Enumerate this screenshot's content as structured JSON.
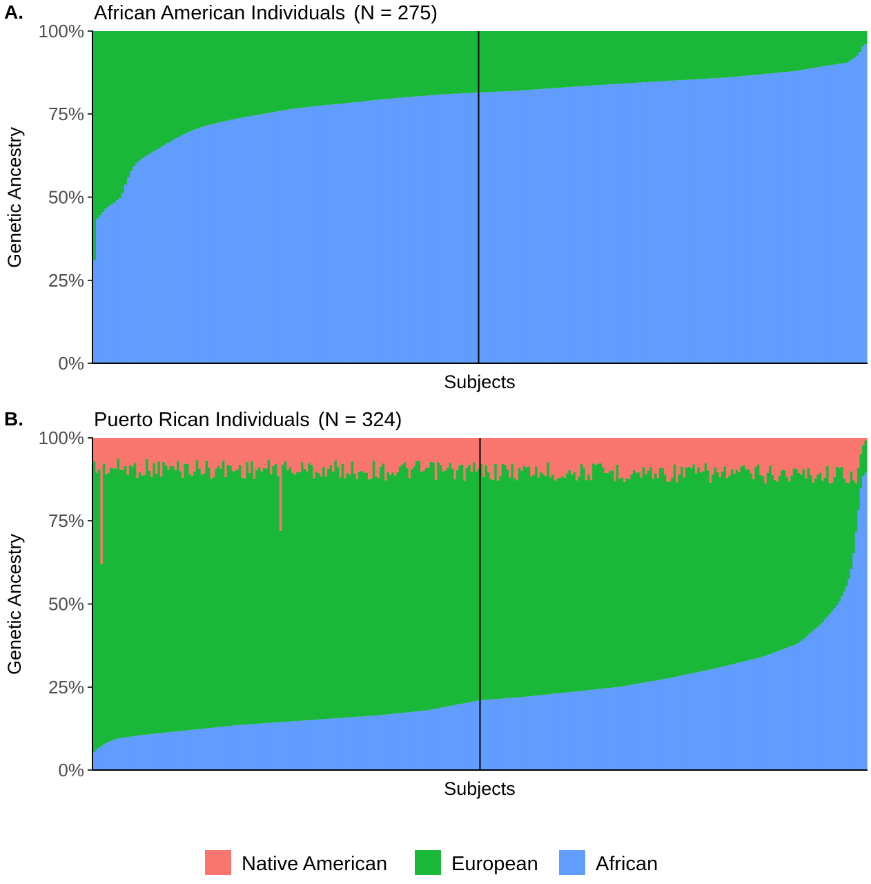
{
  "chart_data": [
    {
      "type": "bar",
      "stacked": true,
      "panel_label": "A.",
      "title": "African American Individuals",
      "n_label": "(N = 275)",
      "xlabel": "Subjects",
      "ylabel": "Genetic Ancestry",
      "ylim": [
        0,
        100
      ],
      "yticks": [
        "0%",
        "25%",
        "50%",
        "75%",
        "100%"
      ],
      "n_subjects": 275,
      "sort_by": "African",
      "median_line": true,
      "series_order": [
        "African",
        "European",
        "Native American"
      ],
      "african_profile": [
        [
          0,
          30
        ],
        [
          0.5,
          31
        ],
        [
          1,
          43
        ],
        [
          2,
          44
        ],
        [
          3,
          45
        ],
        [
          4,
          46
        ],
        [
          5,
          47
        ],
        [
          7,
          48
        ],
        [
          10,
          50
        ],
        [
          12,
          55
        ],
        [
          13,
          57
        ],
        [
          15,
          60
        ],
        [
          18,
          62
        ],
        [
          22,
          64
        ],
        [
          26,
          66
        ],
        [
          30,
          68
        ],
        [
          35,
          70
        ],
        [
          40,
          71.5
        ],
        [
          50,
          73.5
        ],
        [
          60,
          75
        ],
        [
          70,
          76.5
        ],
        [
          80,
          77.5
        ],
        [
          90,
          78.3
        ],
        [
          100,
          79.2
        ],
        [
          110,
          80
        ],
        [
          125,
          81
        ],
        [
          137,
          81.5
        ],
        [
          150,
          82
        ],
        [
          175,
          83.5
        ],
        [
          200,
          84.8
        ],
        [
          225,
          86
        ],
        [
          250,
          88
        ],
        [
          260,
          89.5
        ],
        [
          268,
          90.5
        ],
        [
          270,
          91.5
        ],
        [
          272,
          93
        ],
        [
          274,
          96
        ],
        [
          275,
          96
        ]
      ],
      "native_american_profile": [
        [
          0,
          0
        ],
        [
          275,
          0
        ]
      ],
      "european_profile": "remainder to 100%"
    },
    {
      "type": "bar",
      "stacked": true,
      "panel_label": "B.",
      "title": "Puerto Rican Individuals",
      "n_label": "(N = 324)",
      "xlabel": "Subjects",
      "ylabel": "Genetic Ancestry",
      "ylim": [
        0,
        100
      ],
      "yticks": [
        "0%",
        "25%",
        "50%",
        "75%",
        "100%"
      ],
      "n_subjects": 324,
      "sort_by": "African",
      "median_line": true,
      "series_order": [
        "African",
        "European",
        "Native American"
      ],
      "african_profile": [
        [
          0,
          5
        ],
        [
          2,
          6.5
        ],
        [
          5,
          8
        ],
        [
          10,
          9.5
        ],
        [
          20,
          10.5
        ],
        [
          40,
          12
        ],
        [
          60,
          13.5
        ],
        [
          80,
          14.5
        ],
        [
          100,
          15.5
        ],
        [
          120,
          16.5
        ],
        [
          140,
          18
        ],
        [
          162,
          21
        ],
        [
          180,
          22
        ],
        [
          200,
          23.5
        ],
        [
          220,
          25
        ],
        [
          240,
          27.5
        ],
        [
          260,
          30.5
        ],
        [
          280,
          34
        ],
        [
          295,
          38
        ],
        [
          305,
          44
        ],
        [
          312,
          50
        ],
        [
          316,
          56
        ],
        [
          318,
          62
        ],
        [
          320,
          75
        ],
        [
          322,
          88
        ],
        [
          324,
          90
        ]
      ],
      "native_american_profile": [
        [
          0,
          9
        ],
        [
          320,
          11
        ],
        [
          322,
          3
        ],
        [
          324,
          0
        ]
      ],
      "native_american_outliers": [
        {
          "subject": 3,
          "value": 38
        },
        {
          "subject": 78,
          "value": 28
        }
      ],
      "european_profile": "remainder to 100%"
    }
  ],
  "legend": {
    "items": [
      {
        "label": "Native American",
        "color": "#F8766D"
      },
      {
        "label": "European",
        "color": "#1AB839"
      },
      {
        "label": "African",
        "color": "#619CFF"
      }
    ]
  },
  "colors": {
    "Native American": "#F8766D",
    "European": "#1AB839",
    "African": "#619CFF"
  }
}
